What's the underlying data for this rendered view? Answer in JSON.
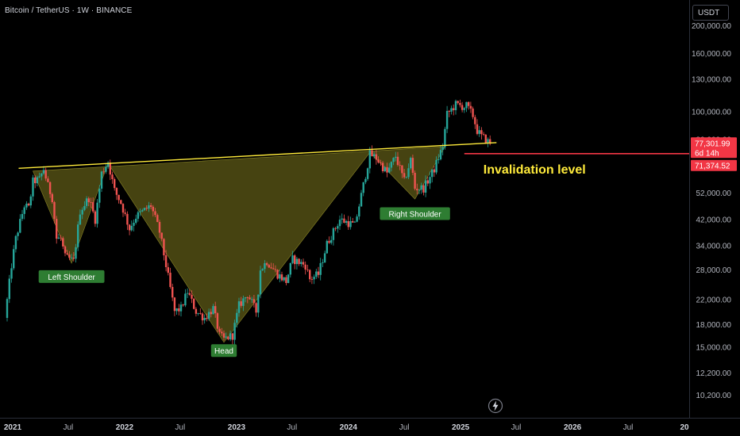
{
  "title": "Bitcoin / TetherUS · 1W · BINANCE",
  "currency_button": "USDT",
  "chart_data": {
    "type": "candlestick",
    "symbol": "Bitcoin / TetherUS",
    "interval": "1W",
    "exchange": "BINANCE",
    "scale": "log",
    "y_ticks": [
      "200,000.00",
      "160,000.00",
      "130,000.00",
      "100,000.00",
      "80,000.00",
      "52,000.00",
      "42,000.00",
      "34,000.00",
      "28,000.00",
      "22,000.00",
      "18,000.00",
      "15,000.00",
      "12,200.00",
      "10,200.00"
    ],
    "y_tick_values": [
      200000,
      160000,
      130000,
      100000,
      80000,
      52000,
      42000,
      34000,
      28000,
      22000,
      18000,
      15000,
      12200,
      10200
    ],
    "x_ticks": [
      "2021",
      "Jul",
      "2022",
      "Jul",
      "2023",
      "Jul",
      "2024",
      "Jul",
      "2025",
      "Jul",
      "2026",
      "Jul",
      "20"
    ],
    "x_tick_dates": [
      "2021-01-01",
      "2021-07-01",
      "2022-01-01",
      "2022-07-01",
      "2023-01-01",
      "2023-07-01",
      "2024-01-01",
      "2024-07-01",
      "2025-01-01",
      "2025-07-01",
      "2026-01-01",
      "2026-07-01",
      "2027-01-01"
    ],
    "price_path": [
      [
        "2020-12-07",
        19000
      ],
      [
        "2020-12-28",
        29000
      ],
      [
        "2021-01-11",
        36000
      ],
      [
        "2021-02-08",
        47000
      ],
      [
        "2021-02-22",
        46000
      ],
      [
        "2021-03-08",
        57000
      ],
      [
        "2021-03-29",
        58000
      ],
      [
        "2021-04-12",
        63000
      ],
      [
        "2021-04-26",
        55000
      ],
      [
        "2021-05-10",
        50000
      ],
      [
        "2021-05-24",
        36000
      ],
      [
        "2021-06-07",
        36000
      ],
      [
        "2021-06-21",
        31000
      ],
      [
        "2021-07-19",
        30000
      ],
      [
        "2021-08-09",
        45000
      ],
      [
        "2021-09-06",
        50000
      ],
      [
        "2021-09-27",
        42000
      ],
      [
        "2021-10-18",
        61000
      ],
      [
        "2021-11-08",
        67000
      ],
      [
        "2021-11-29",
        53000
      ],
      [
        "2021-12-20",
        48000
      ],
      [
        "2022-01-17",
        39000
      ],
      [
        "2022-02-07",
        43000
      ],
      [
        "2022-03-28",
        47000
      ],
      [
        "2022-04-25",
        38000
      ],
      [
        "2022-05-16",
        29000
      ],
      [
        "2022-06-13",
        20000
      ],
      [
        "2022-07-04",
        20500
      ],
      [
        "2022-07-25",
        23500
      ],
      [
        "2022-08-22",
        20000
      ],
      [
        "2022-09-19",
        19000
      ],
      [
        "2022-10-17",
        20500
      ],
      [
        "2022-11-07",
        16500
      ],
      [
        "2022-11-21",
        16000
      ],
      [
        "2022-12-19",
        16500
      ],
      [
        "2023-01-09",
        21000
      ],
      [
        "2023-02-06",
        23000
      ],
      [
        "2023-03-06",
        20000
      ],
      [
        "2023-03-20",
        28000
      ],
      [
        "2023-04-10",
        30000
      ],
      [
        "2023-05-15",
        27000
      ],
      [
        "2023-06-12",
        25500
      ],
      [
        "2023-07-03",
        30500
      ],
      [
        "2023-08-14",
        29000
      ],
      [
        "2023-08-28",
        26000
      ],
      [
        "2023-09-25",
        27000
      ],
      [
        "2023-10-23",
        34500
      ],
      [
        "2023-12-04",
        42000
      ],
      [
        "2024-01-22",
        40000
      ],
      [
        "2024-02-12",
        51000
      ],
      [
        "2024-03-11",
        71000
      ],
      [
        "2024-04-01",
        69000
      ],
      [
        "2024-05-06",
        61000
      ],
      [
        "2024-06-03",
        70000
      ],
      [
        "2024-07-01",
        57000
      ],
      [
        "2024-07-22",
        68000
      ],
      [
        "2024-08-05",
        54000
      ],
      [
        "2024-09-02",
        54000
      ],
      [
        "2024-10-07",
        63000
      ],
      [
        "2024-11-04",
        76000
      ],
      [
        "2024-11-18",
        98000
      ],
      [
        "2024-12-16",
        106000
      ],
      [
        "2025-01-13",
        104000
      ],
      [
        "2025-01-20",
        105000
      ],
      [
        "2025-02-10",
        97000
      ],
      [
        "2025-02-24",
        86000
      ],
      [
        "2025-03-10",
        82000
      ],
      [
        "2025-03-24",
        80000
      ],
      [
        "2025-04-07",
        77300
      ]
    ],
    "neckline": {
      "start": [
        "2021-03-08",
        63000
      ],
      "end": [
        "2025-04-28",
        78000
      ],
      "color": "#ffeb3b"
    },
    "pattern_polygon": [
      [
        "2021-03-08",
        62000
      ],
      [
        "2021-07-12",
        29500
      ],
      [
        "2021-11-08",
        66000
      ],
      [
        "2022-11-21",
        15600
      ],
      [
        "2024-03-11",
        72000
      ],
      [
        "2024-08-05",
        49500
      ],
      [
        "2024-11-11",
        75500
      ]
    ],
    "annotations": [
      {
        "text": "Left Shoulder",
        "date": "2021-07-12",
        "price": 26500,
        "color": "#2e7d32"
      },
      {
        "text": "Head",
        "date": "2022-11-21",
        "price": 14600,
        "color": "#2e7d32"
      },
      {
        "text": "Right Shoulder",
        "date": "2024-08-05",
        "price": 44000,
        "color": "#2e7d32"
      }
    ],
    "invalidation": {
      "text": "Invalidation level",
      "price": 71374.52,
      "start_date": "2025-01-13",
      "color": "#f23645"
    },
    "current_price": {
      "value": "77,301.99",
      "countdown": "6d 14h",
      "price": 77301.99,
      "color": "#f23645"
    },
    "invalidation_label": {
      "value": "71,374.52",
      "color": "#f23645"
    },
    "up_color": "#26a69a",
    "down_color": "#ef5350",
    "pattern_fill": "#5e5a17",
    "label_text_color": "#ffeb3b"
  }
}
